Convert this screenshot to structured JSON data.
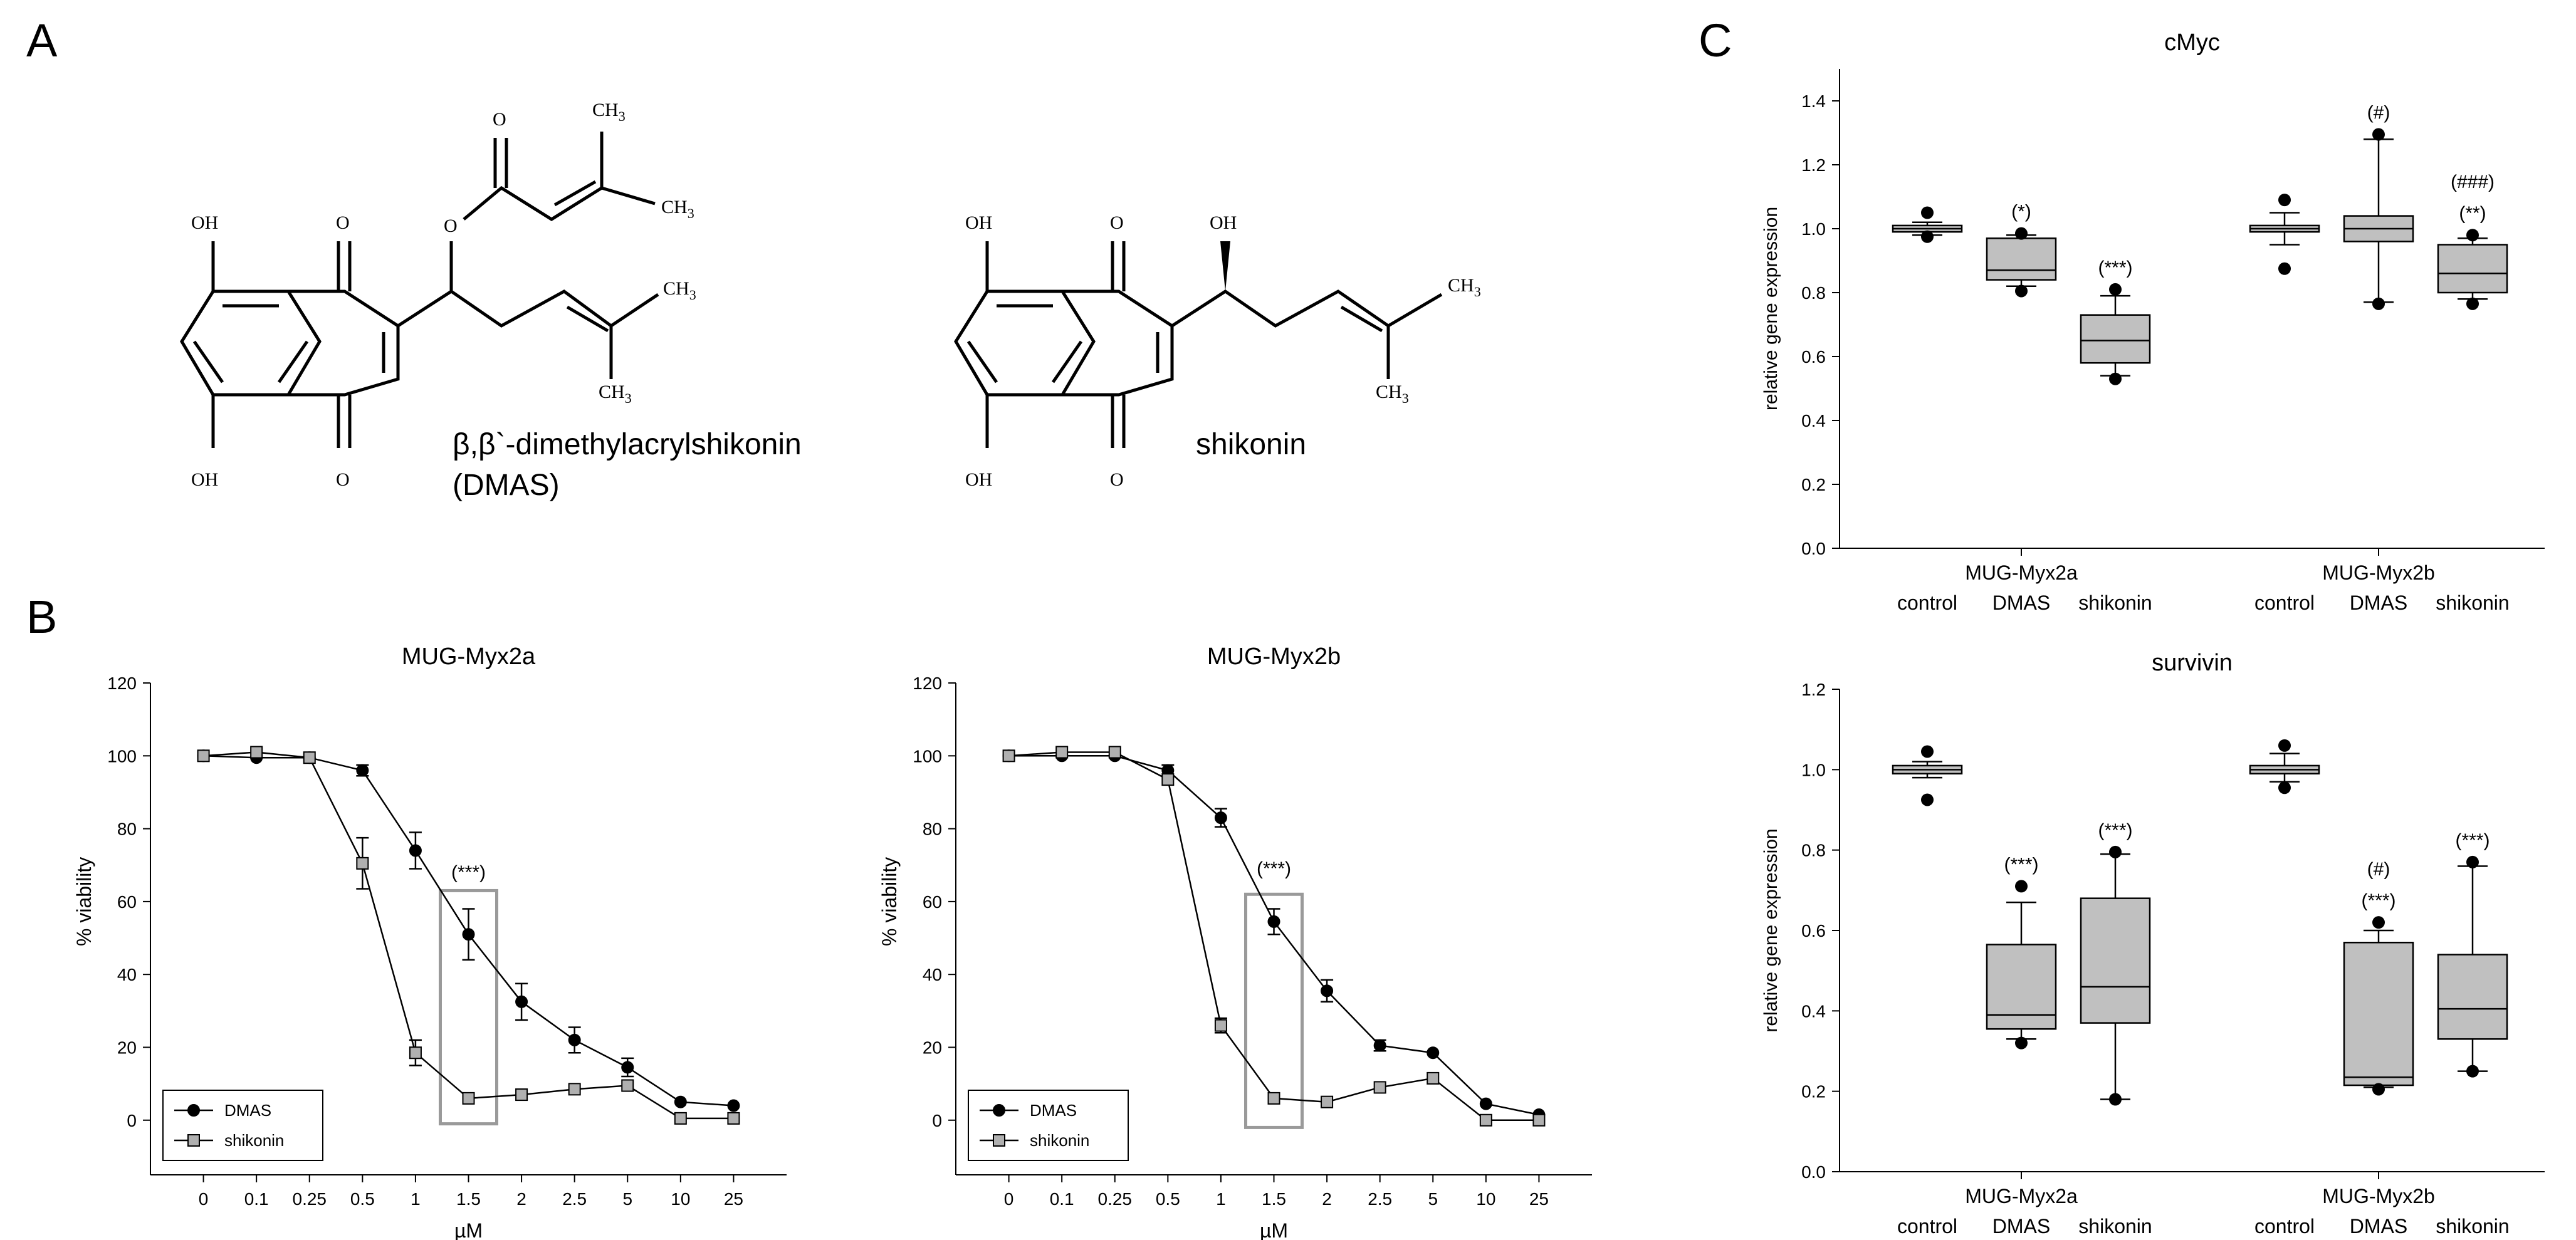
{
  "panels": {
    "A": "A",
    "B": "B",
    "C": "C"
  },
  "structures": {
    "dmas": {
      "name_line1": "β,β`-dimethylacrylshikonin",
      "name_line2": "(DMAS)",
      "atoms": {
        "oh": "OH",
        "o": "O",
        "ch3": "CH",
        "sub3": "3"
      }
    },
    "shikonin": {
      "name": "shikonin",
      "atoms": {
        "oh": "OH",
        "o": "O",
        "ch3": "CH",
        "sub3": "3"
      }
    }
  },
  "chart_data": [
    {
      "id": "viability-2a",
      "type": "line",
      "title": "MUG-Myx2a",
      "xlabel": "µM",
      "ylabel": "% viability",
      "categories": [
        "0",
        "0.1",
        "0.25",
        "0.5",
        "1",
        "1.5",
        "2",
        "2.5",
        "5",
        "10",
        "25"
      ],
      "ylim": [
        -15,
        120
      ],
      "yticks": [
        0,
        20,
        40,
        60,
        80,
        100,
        120
      ],
      "series": [
        {
          "name": "DMAS",
          "marker": "circle",
          "color": "#000000",
          "values": [
            100,
            99.5,
            99.5,
            96,
            74,
            51,
            32.5,
            22,
            14.5,
            5,
            4
          ],
          "errors": [
            1,
            1,
            1,
            1.5,
            5,
            7,
            5,
            3.5,
            2.5,
            1,
            1
          ]
        },
        {
          "name": "shikonin",
          "marker": "square",
          "color": "#b0b0b0",
          "values": [
            100,
            101,
            99.5,
            70.5,
            18.5,
            6,
            7,
            8.5,
            9.5,
            0.5,
            0.5
          ],
          "errors": [
            0.5,
            1,
            1,
            7,
            3.5,
            1,
            0.5,
            0.5,
            1,
            0.5,
            0.5
          ]
        }
      ],
      "annotation": {
        "text": "(***)",
        "category": "1.5",
        "y": 65
      },
      "highlight": {
        "category": "1.5",
        "ymin": -1,
        "ymax": 63
      },
      "legend_position": "bottom-left"
    },
    {
      "id": "viability-2b",
      "type": "line",
      "title": "MUG-Myx2b",
      "xlabel": "µM",
      "ylabel": "% viability",
      "categories": [
        "0",
        "0.1",
        "0.25",
        "0.5",
        "1",
        "1.5",
        "2",
        "2.5",
        "5",
        "10",
        "25"
      ],
      "ylim": [
        -15,
        120
      ],
      "yticks": [
        0,
        20,
        40,
        60,
        80,
        100,
        120
      ],
      "series": [
        {
          "name": "DMAS",
          "marker": "circle",
          "color": "#000000",
          "values": [
            100,
            100,
            100,
            96,
            83,
            54.5,
            35.5,
            20.5,
            18.5,
            4.5,
            1.5
          ],
          "errors": [
            1,
            1,
            1,
            1.5,
            2.5,
            3.5,
            3,
            1.5,
            1,
            1,
            0.5
          ]
        },
        {
          "name": "shikonin",
          "marker": "square",
          "color": "#b0b0b0",
          "values": [
            100,
            101,
            101,
            93.5,
            26,
            6,
            5,
            9,
            11.5,
            0,
            0
          ],
          "errors": [
            0.5,
            0.5,
            1,
            1,
            2,
            1,
            0.5,
            0.5,
            1,
            0.5,
            0.5
          ]
        }
      ],
      "annotation": {
        "text": "(***)",
        "category": "1.5",
        "y": 66
      },
      "highlight": {
        "category": "1.5",
        "ymin": -2,
        "ymax": 62
      },
      "legend_position": "bottom-left"
    },
    {
      "id": "cmyc",
      "type": "box",
      "title": "cMyc",
      "ylabel": "relative gene expression",
      "ylim": [
        0,
        1.5
      ],
      "yticks": [
        0.0,
        0.2,
        0.4,
        0.6,
        0.8,
        1.0,
        1.2,
        1.4
      ],
      "group_labels": [
        "MUG-Myx2a",
        "MUG-Myx2b"
      ],
      "box_labels": [
        "control",
        "DMAS",
        "shikonin",
        "control",
        "DMAS",
        "shikonin"
      ],
      "boxes": [
        {
          "min": 0.98,
          "q1": 0.99,
          "median": 1.0,
          "q3": 1.01,
          "max": 1.02,
          "outliers": [
            0.975,
            1.05
          ],
          "annotation": []
        },
        {
          "min": 0.82,
          "q1": 0.84,
          "median": 0.87,
          "q3": 0.97,
          "max": 0.98,
          "outliers": [
            0.805,
            0.985
          ],
          "annotation": [
            "(*)"
          ]
        },
        {
          "min": 0.54,
          "q1": 0.58,
          "median": 0.65,
          "q3": 0.73,
          "max": 0.79,
          "outliers": [
            0.53,
            0.81
          ],
          "annotation": [
            "(***)"
          ]
        },
        {
          "min": 0.95,
          "q1": 0.99,
          "median": 1.0,
          "q3": 1.01,
          "max": 1.05,
          "outliers": [
            0.875,
            1.09
          ],
          "annotation": []
        },
        {
          "min": 0.77,
          "q1": 0.96,
          "median": 1.0,
          "q3": 1.04,
          "max": 1.28,
          "outliers": [
            0.765,
            1.295
          ],
          "annotation": [
            "(#)"
          ]
        },
        {
          "min": 0.78,
          "q1": 0.8,
          "median": 0.86,
          "q3": 0.95,
          "max": 0.97,
          "outliers": [
            0.765,
            0.98
          ],
          "annotation": [
            "(**)",
            "(###)"
          ]
        }
      ]
    },
    {
      "id": "survivin",
      "type": "box",
      "title": "survivin",
      "ylabel": "relative gene expression",
      "ylim": [
        0,
        1.2
      ],
      "yticks": [
        0.0,
        0.2,
        0.4,
        0.6,
        0.8,
        1.0,
        1.2
      ],
      "group_labels": [
        "MUG-Myx2a",
        "MUG-Myx2b"
      ],
      "box_labels": [
        "control",
        "DMAS",
        "shikonin",
        "control",
        "DMAS",
        "shikonin"
      ],
      "boxes": [
        {
          "min": 0.98,
          "q1": 0.99,
          "median": 1.0,
          "q3": 1.01,
          "max": 1.02,
          "outliers": [
            0.925,
            1.045
          ],
          "annotation": []
        },
        {
          "min": 0.33,
          "q1": 0.355,
          "median": 0.39,
          "q3": 0.565,
          "max": 0.67,
          "outliers": [
            0.32,
            0.71
          ],
          "annotation": [
            "(***)"
          ]
        },
        {
          "min": 0.18,
          "q1": 0.37,
          "median": 0.46,
          "q3": 0.68,
          "max": 0.79,
          "outliers": [
            0.18,
            0.795
          ],
          "annotation": [
            "(***)"
          ]
        },
        {
          "min": 0.97,
          "q1": 0.99,
          "median": 1.0,
          "q3": 1.01,
          "max": 1.04,
          "outliers": [
            0.955,
            1.06
          ],
          "annotation": []
        },
        {
          "min": 0.21,
          "q1": 0.215,
          "median": 0.235,
          "q3": 0.57,
          "max": 0.6,
          "outliers": [
            0.205,
            0.62
          ],
          "annotation": [
            "(***)",
            "(#)"
          ]
        },
        {
          "min": 0.25,
          "q1": 0.33,
          "median": 0.405,
          "q3": 0.54,
          "max": 0.76,
          "outliers": [
            0.25,
            0.77
          ],
          "annotation": [
            "(***)"
          ]
        }
      ]
    }
  ]
}
